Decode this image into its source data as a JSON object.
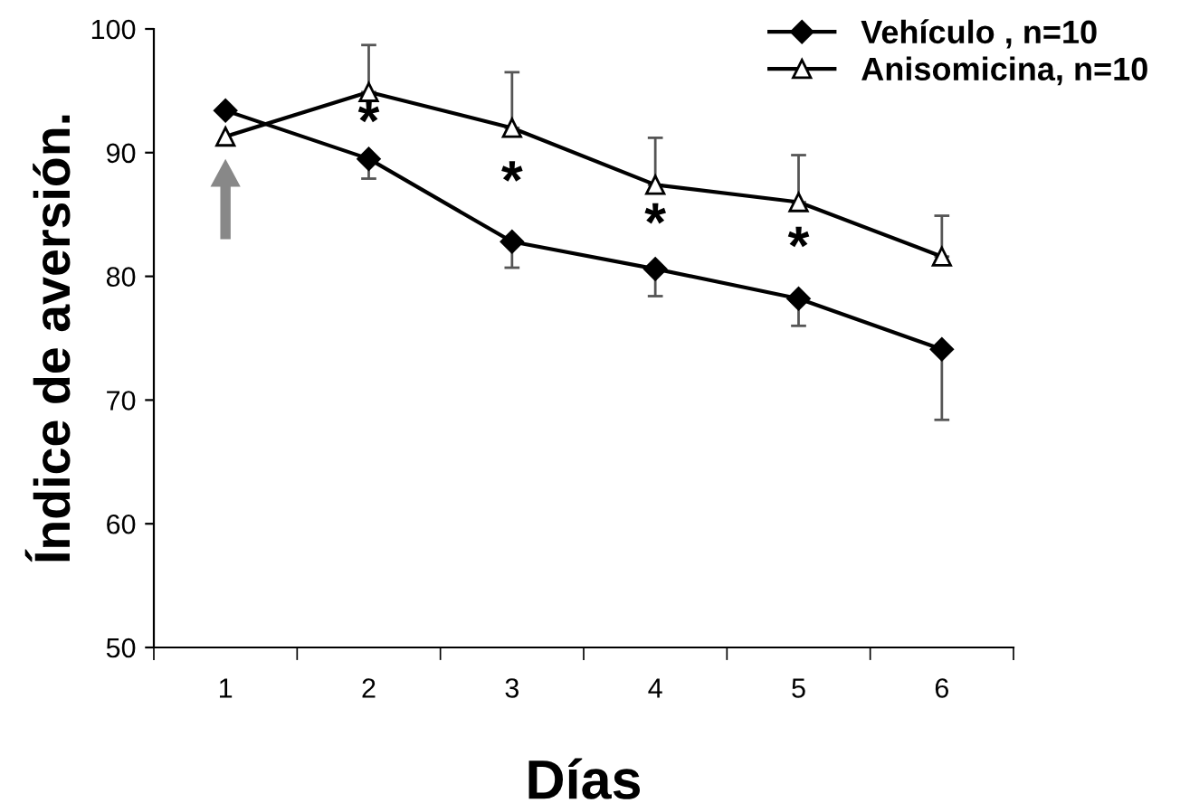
{
  "chart_data": {
    "type": "line",
    "xlabel": "Días",
    "ylabel": "Índice de aversión.",
    "categories": [
      "1",
      "2",
      "3",
      "4",
      "5",
      "6"
    ],
    "series": [
      {
        "name": "Vehículo , n=10",
        "color": "#000000",
        "marker": "diamond",
        "values": [
          93.4,
          89.5,
          82.8,
          80.6,
          78.2,
          74.1
        ],
        "errors": [
          null,
          [
            87.9,
            89.5
          ],
          [
            80.7,
            82.8
          ],
          [
            78.4,
            80.6
          ],
          [
            76.0,
            78.2
          ],
          [
            68.4,
            74.1
          ]
        ]
      },
      {
        "name": "Anisomicina, n=10",
        "color": "#000000",
        "marker": "triangle",
        "values": [
          91.3,
          94.9,
          92.0,
          87.4,
          86.0,
          81.6
        ],
        "errors": [
          null,
          [
            94.9,
            98.7
          ],
          [
            92.0,
            96.5
          ],
          [
            87.4,
            91.2
          ],
          [
            86.0,
            89.8
          ],
          [
            81.6,
            84.9
          ]
        ]
      }
    ],
    "annotations": [
      "*",
      "*",
      "*",
      "*"
    ],
    "ylim": [
      50,
      100
    ],
    "yticks": [
      50,
      60,
      70,
      80,
      90,
      100
    ],
    "grid": false,
    "legend": "top right"
  }
}
